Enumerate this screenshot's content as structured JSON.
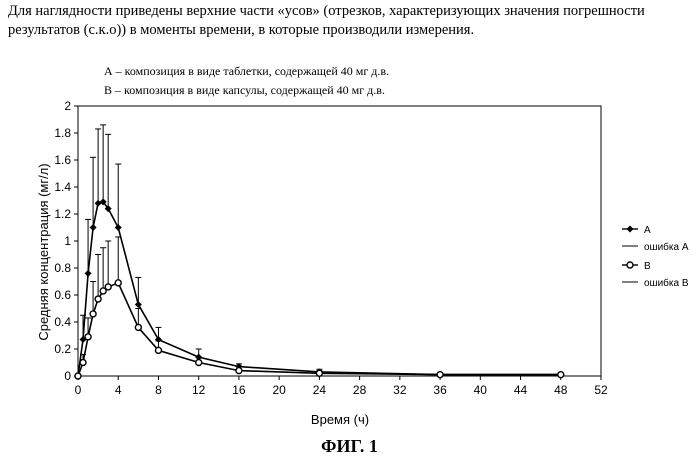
{
  "intro_text": "Для наглядности приведены верхние части «усов» (отрезков, характеризующих значения погрешности результатов (с.к.о)) в моменты времени, в которые производили измерения.",
  "legend_top": {
    "line_a": "А – композиция в виде таблетки, содержащей 40 мг д.в.",
    "line_b": "В – композиция в виде капсулы, содержащей 40 мг д.в."
  },
  "figure_caption": "ФИГ. 1",
  "chart_data": {
    "type": "line",
    "title": "",
    "xlabel": "Время (ч)",
    "ylabel": "Средняя концентрация (мг/л)",
    "xlim": [
      0,
      52
    ],
    "ylim": [
      0,
      2
    ],
    "x_ticks": [
      "0",
      "4",
      "8",
      "12",
      "16",
      "20",
      "24",
      "28",
      "32",
      "36",
      "40",
      "44",
      "48",
      "52"
    ],
    "y_ticks": [
      "0",
      "0.2",
      "0.4",
      "0.6",
      "0.8",
      "1",
      "1.2",
      "1.4",
      "1.6",
      "1.8",
      "2"
    ],
    "legend_position": "right",
    "grid": false,
    "series": [
      {
        "name": "A",
        "error_name": "ошибка A",
        "marker": "diamond",
        "points": [
          {
            "x": 0,
            "y": 0
          },
          {
            "x": 0.5,
            "y": 0.27,
            "err": 0.45
          },
          {
            "x": 1,
            "y": 0.76,
            "err": 1.16
          },
          {
            "x": 1.5,
            "y": 1.1,
            "err": 1.62
          },
          {
            "x": 2,
            "y": 1.28,
            "err": 1.83
          },
          {
            "x": 2.5,
            "y": 1.29,
            "err": 1.86
          },
          {
            "x": 3,
            "y": 1.24,
            "err": 1.79
          },
          {
            "x": 4,
            "y": 1.1,
            "err": 1.57
          },
          {
            "x": 6,
            "y": 0.53,
            "err": 0.73
          },
          {
            "x": 8,
            "y": 0.27,
            "err": 0.36
          },
          {
            "x": 12,
            "y": 0.14,
            "err": 0.2
          },
          {
            "x": 16,
            "y": 0.07,
            "err": 0.09
          },
          {
            "x": 24,
            "y": 0.03,
            "err": 0.05
          },
          {
            "x": 36,
            "y": 0.01,
            "err": 0.02
          },
          {
            "x": 48,
            "y": 0.01,
            "err": 0.02
          }
        ]
      },
      {
        "name": "B",
        "error_name": "ошибка B",
        "marker": "circle",
        "points": [
          {
            "x": 0,
            "y": 0
          },
          {
            "x": 0.5,
            "y": 0.1,
            "err": 0.16
          },
          {
            "x": 1,
            "y": 0.29,
            "err": 0.43
          },
          {
            "x": 1.5,
            "y": 0.46,
            "err": 0.7
          },
          {
            "x": 2,
            "y": 0.57,
            "err": 0.9
          },
          {
            "x": 2.5,
            "y": 0.63,
            "err": 0.95
          },
          {
            "x": 3,
            "y": 0.66,
            "err": 1.0
          },
          {
            "x": 4,
            "y": 0.69,
            "err": 1.03
          },
          {
            "x": 6,
            "y": 0.36,
            "err": 0.5
          },
          {
            "x": 8,
            "y": 0.19,
            "err": 0.26
          },
          {
            "x": 12,
            "y": 0.1,
            "err": 0.14
          },
          {
            "x": 16,
            "y": 0.04,
            "err": 0.07
          },
          {
            "x": 24,
            "y": 0.02,
            "err": 0.04
          },
          {
            "x": 36,
            "y": 0.01,
            "err": 0.02
          },
          {
            "x": 48,
            "y": 0.01,
            "err": 0.01
          }
        ]
      }
    ]
  }
}
